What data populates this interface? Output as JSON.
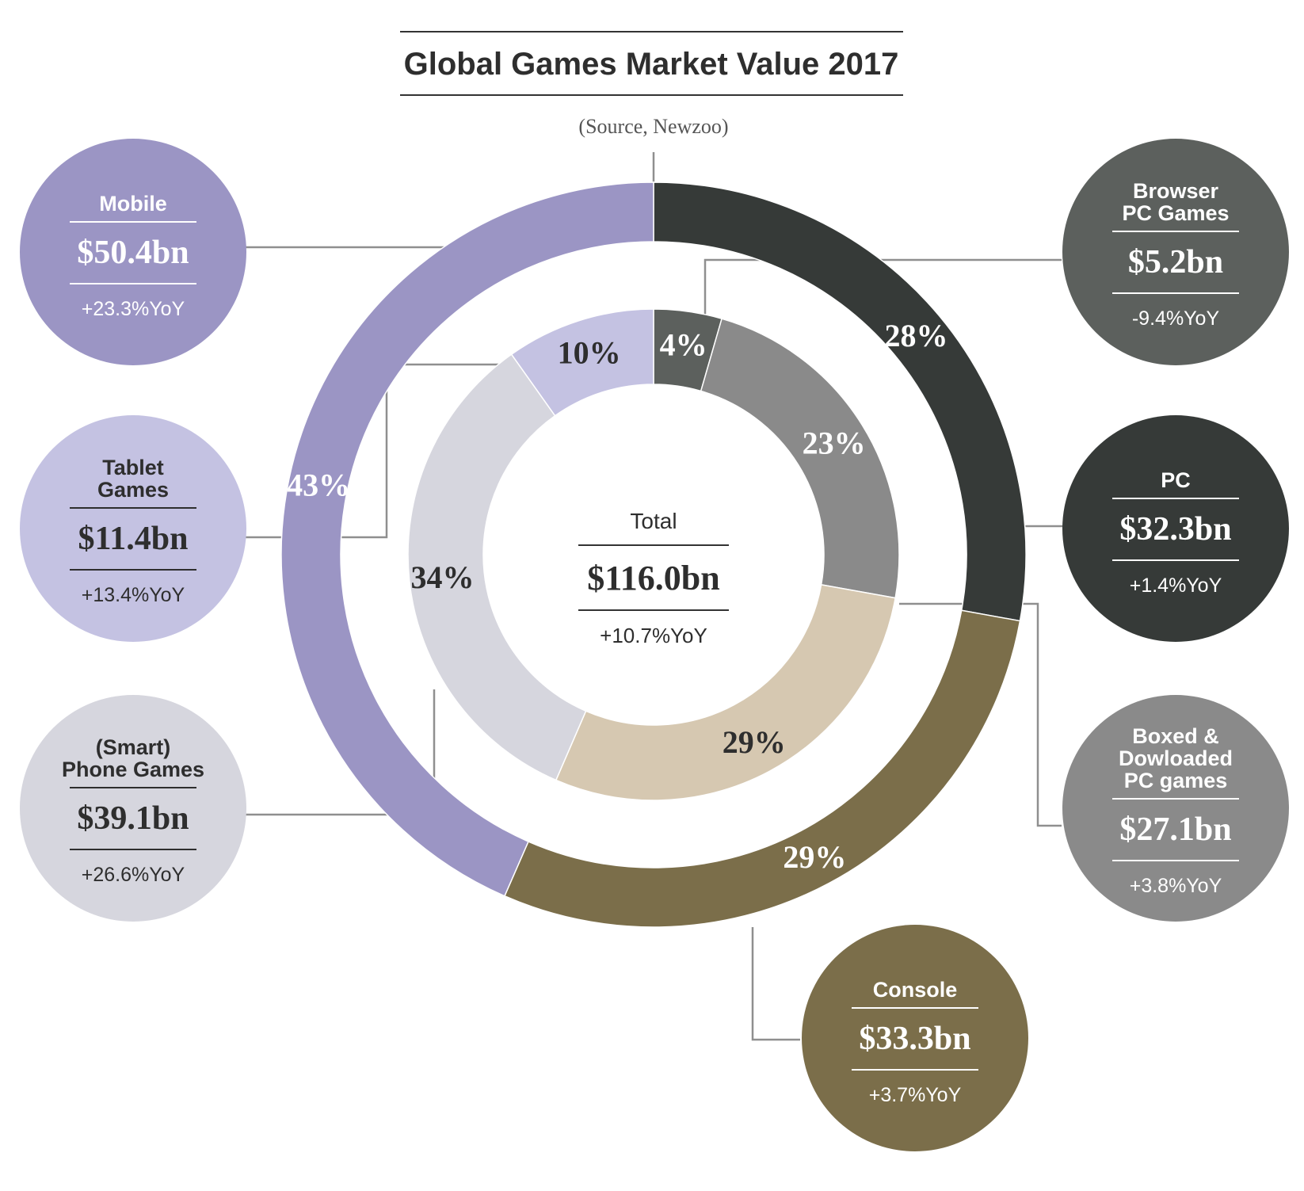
{
  "chart_data": {
    "type": "pie",
    "title": "Global Games Market Value 2017",
    "subtitle": "(Source, Newzoo)",
    "total": {
      "label": "Total",
      "value": "$116.0bn",
      "yoy": "+10.7%YoY"
    },
    "outer_ring": [
      {
        "name": "Mobile",
        "value": 50.4,
        "value_label": "$50.4bn",
        "yoy": "+23.3%YoY",
        "pct_label": "43%",
        "color": "#9b95c4"
      },
      {
        "name": "PC",
        "value": 32.3,
        "value_label": "$32.3bn",
        "yoy": "+1.4%YoY",
        "pct_label": "28%",
        "color": "#363a38"
      },
      {
        "name": "Console",
        "value": 33.3,
        "value_label": "$33.3bn",
        "yoy": "+3.7%YoY",
        "pct_label": "29%",
        "color": "#7b6e4a"
      }
    ],
    "inner_ring": [
      {
        "name": "Browser PC Games",
        "value": 5.2,
        "value_label": "$5.2bn",
        "yoy": "-9.4%YoY",
        "pct_label": "4%",
        "color": "#5c605d"
      },
      {
        "name": "Boxed & Dowloaded PC games",
        "value": 27.1,
        "value_label": "$27.1bn",
        "yoy": "+3.8%YoY",
        "pct_label": "23%",
        "color": "#8a8a8a"
      },
      {
        "name": "Console",
        "value": 33.3,
        "value_label": "",
        "yoy": "",
        "pct_label": "29%",
        "color": "#d6c8b1"
      },
      {
        "name": "(Smart) Phone Games",
        "value": 39.1,
        "value_label": "$39.1bn",
        "yoy": "+26.6%YoY",
        "pct_label": "34%",
        "color": "#d6d6de"
      },
      {
        "name": "Tablet Games",
        "value": 11.4,
        "value_label": "$11.4bn",
        "yoy": "+13.4%YoY",
        "pct_label": "10%",
        "color": "#c4c2e2"
      }
    ]
  },
  "bubbles": [
    {
      "id": "mobile",
      "label_lines": [
        "Mobile"
      ],
      "value": "$50.4bn",
      "yoy": "+23.3%YoY",
      "color": "#9b95c4",
      "text_color": "#ffffff"
    },
    {
      "id": "tablet",
      "label_lines": [
        "Tablet",
        "Games"
      ],
      "value": "$11.4bn",
      "yoy": "+13.4%YoY",
      "color": "#c4c2e2",
      "text_color": "#2e2e2e"
    },
    {
      "id": "phone",
      "label_lines": [
        "(Smart)",
        "Phone Games"
      ],
      "value": "$39.1bn",
      "yoy": "+26.6%YoY",
      "color": "#d6d6de",
      "text_color": "#2e2e2e"
    },
    {
      "id": "browser",
      "label_lines": [
        "Browser",
        "PC Games"
      ],
      "value": "$5.2bn",
      "yoy": "-9.4%YoY",
      "color": "#5c605d",
      "text_color": "#ffffff"
    },
    {
      "id": "pc",
      "label_lines": [
        "PC"
      ],
      "value": "$32.3bn",
      "yoy": "+1.4%YoY",
      "color": "#363a38",
      "text_color": "#ffffff"
    },
    {
      "id": "boxed",
      "label_lines": [
        "Boxed &",
        "Dowloaded",
        "PC games"
      ],
      "value": "$27.1bn",
      "yoy": "+3.8%YoY",
      "color": "#8a8a8a",
      "text_color": "#ffffff"
    },
    {
      "id": "console",
      "label_lines": [
        "Console"
      ],
      "value": "$33.3bn",
      "yoy": "+3.7%YoY",
      "color": "#7b6e4a",
      "text_color": "#ffffff"
    }
  ],
  "colors": {
    "leader_line": "#8f8f8f",
    "title_rule": "#333333"
  }
}
